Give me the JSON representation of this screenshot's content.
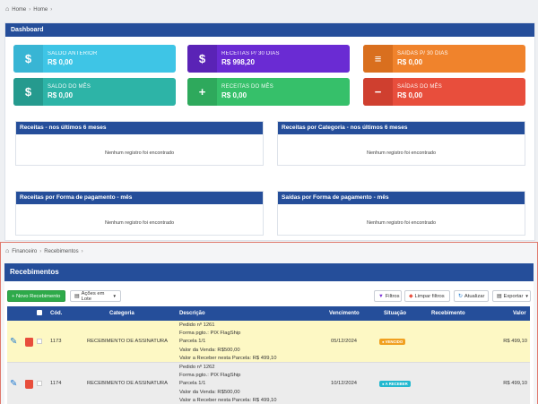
{
  "top_breadcrumb": [
    "Home",
    "Home"
  ],
  "dashboard": {
    "title": "Dashboard",
    "cards": [
      {
        "label": "SALDO ANTERIOR",
        "value": "R$ 0,00",
        "icon": "dollar-icon",
        "glyph": "$",
        "color": "#3ec5e6",
        "icon_bg": "#38b5d4"
      },
      {
        "label": "RECEITAS P/ 30 DIAS",
        "value": "R$ 998,20",
        "icon": "money-bag-icon",
        "glyph": "$",
        "color": "#6a2bd3",
        "icon_bg": "#5a23b6"
      },
      {
        "label": "SAÍDAS P/ 30 DIAS",
        "value": "R$ 0,00",
        "icon": "receipt-icon",
        "glyph": "≡",
        "color": "#f0832c",
        "icon_bg": "#d96f1e"
      },
      {
        "label": "SALDO DO MÊS",
        "value": "R$ 0,00",
        "icon": "dollar-icon",
        "glyph": "$",
        "color": "#2db4a7",
        "icon_bg": "#259a8e"
      },
      {
        "label": "RECEITAS DO MÊS",
        "value": "R$ 0,00",
        "icon": "plus-icon",
        "glyph": "+",
        "color": "#36c06a",
        "icon_bg": "#2ea95c"
      },
      {
        "label": "SAÍDAS DO MÊS",
        "value": "R$ 0,00",
        "icon": "minus-icon",
        "glyph": "−",
        "color": "#e84e3c",
        "icon_bg": "#cf3f2f"
      }
    ],
    "panels": [
      {
        "title": "Receitas - nos últimos 6 meses",
        "empty": "Nenhum registro foi encontrado"
      },
      {
        "title": "Receitas por Categoria - nos últimos 6 meses",
        "empty": "Nenhum registro foi encontrado"
      },
      {
        "title": "Receitas por Forma de pagamento - mês",
        "empty": "Nenhum registro foi encontrado"
      },
      {
        "title": "Saídas por Forma de pagamento - mês",
        "empty": "Nenhum registro foi encontrado"
      }
    ]
  },
  "bottom_breadcrumb": [
    "Financeiro",
    "Recebimentos"
  ],
  "recebimentos": {
    "title": "Recebimentos",
    "toolbar": {
      "new": "+ Novo Recebimento",
      "batch": "Ações em Lote",
      "filters": "Filtros",
      "clear": "Limpar filtros",
      "refresh": "Atualizar",
      "export": "Exportar"
    },
    "columns": [
      "Cód.",
      "Categoria",
      "Descrição",
      "Vencimento",
      "Situação",
      "Recebimento",
      "Valor"
    ],
    "rows": [
      {
        "code": "1173",
        "category": "RECEBIMENTO DE ASSINATURA",
        "description": [
          "Pedido nº 1261",
          "Forma pgto.: PIX FlagShip",
          "Parcela 1/1",
          "Valor da Venda: R$500,00",
          "Valor a Receber nesta Parcela: R$ 499,10"
        ],
        "due": "05/12/2024",
        "status": "VENCIDO",
        "status_color": "#f0a020",
        "received": "",
        "value": "R$ 499,10",
        "bg": "#fdf8c4"
      },
      {
        "code": "1174",
        "category": "RECEBIMENTO DE ASSINATURA",
        "description": [
          "Pedido nº 1262",
          "Forma pgto.: PIX FlagShip",
          "Parcela 1/1",
          "Valor da Venda: R$500,00",
          "Valor a Receber nesta Parcela: R$ 499,10"
        ],
        "due": "10/12/2024",
        "status": "A RECEBER",
        "status_color": "#22b8cf",
        "received": "",
        "value": "R$ 499,10",
        "bg": "#ececec"
      }
    ]
  }
}
